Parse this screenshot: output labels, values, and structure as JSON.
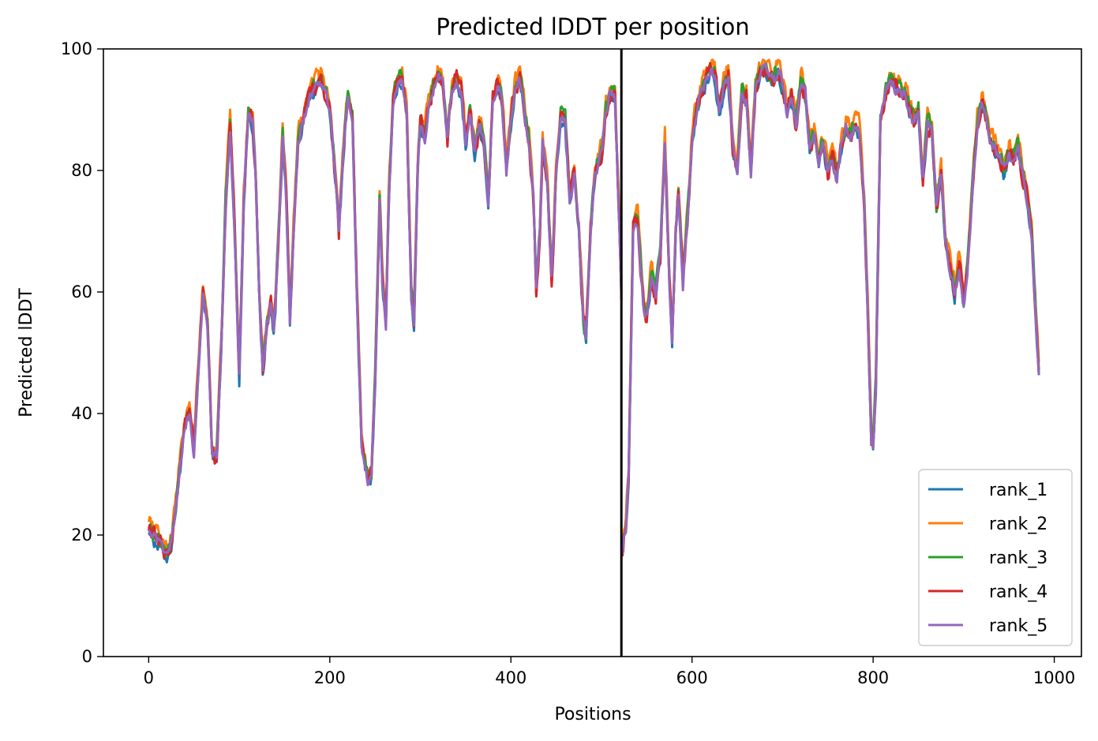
{
  "chart_data": {
    "type": "line",
    "title": "Predicted lDDT per position",
    "xlabel": "Positions",
    "ylabel": "Predicted lDDT",
    "xlim": [
      -50,
      1030
    ],
    "ylim": [
      0,
      100
    ],
    "xticks": [
      0,
      200,
      400,
      600,
      800,
      1000
    ],
    "yticks": [
      0,
      20,
      40,
      60,
      80,
      100
    ],
    "grid": false,
    "legend_position": "bottom-right",
    "chain_break": 522,
    "colors": {
      "rank_1": "#1f77b4",
      "rank_2": "#ff7f0e",
      "rank_3": "#2ca02c",
      "rank_4": "#d62728",
      "rank_5": "#9467bd",
      "chain_break": "#000000"
    },
    "base_profile": [
      [
        0,
        22
      ],
      [
        5,
        20
      ],
      [
        10,
        19
      ],
      [
        20,
        17
      ],
      [
        25,
        19
      ],
      [
        30,
        25
      ],
      [
        35,
        32
      ],
      [
        40,
        38
      ],
      [
        45,
        40
      ],
      [
        50,
        34
      ],
      [
        55,
        48
      ],
      [
        60,
        60
      ],
      [
        65,
        55
      ],
      [
        70,
        34
      ],
      [
        75,
        33
      ],
      [
        80,
        50
      ],
      [
        85,
        75
      ],
      [
        90,
        88
      ],
      [
        95,
        70
      ],
      [
        100,
        46
      ],
      [
        105,
        75
      ],
      [
        110,
        90
      ],
      [
        115,
        88
      ],
      [
        118,
        80
      ],
      [
        122,
        60
      ],
      [
        126,
        47
      ],
      [
        130,
        54
      ],
      [
        135,
        58
      ],
      [
        138,
        54
      ],
      [
        140,
        58
      ],
      [
        145,
        75
      ],
      [
        148,
        86
      ],
      [
        152,
        75
      ],
      [
        156,
        55
      ],
      [
        160,
        70
      ],
      [
        165,
        85
      ],
      [
        170,
        88
      ],
      [
        175,
        91
      ],
      [
        180,
        93
      ],
      [
        185,
        94
      ],
      [
        190,
        95
      ],
      [
        195,
        93
      ],
      [
        200,
        90
      ],
      [
        203,
        85
      ],
      [
        207,
        78
      ],
      [
        210,
        70
      ],
      [
        213,
        78
      ],
      [
        217,
        88
      ],
      [
        220,
        92
      ],
      [
        225,
        89
      ],
      [
        230,
        60
      ],
      [
        235,
        35
      ],
      [
        240,
        31
      ],
      [
        243,
        29
      ],
      [
        246,
        30
      ],
      [
        250,
        45
      ],
      [
        255,
        75
      ],
      [
        258,
        62
      ],
      [
        262,
        55
      ],
      [
        265,
        75
      ],
      [
        270,
        92
      ],
      [
        275,
        95
      ],
      [
        280,
        95
      ],
      [
        285,
        90
      ],
      [
        290,
        60
      ],
      [
        293,
        55
      ],
      [
        297,
        80
      ],
      [
        300,
        88
      ],
      [
        305,
        86
      ],
      [
        310,
        92
      ],
      [
        315,
        94
      ],
      [
        320,
        96
      ],
      [
        325,
        94
      ],
      [
        330,
        85
      ],
      [
        335,
        94
      ],
      [
        340,
        95
      ],
      [
        345,
        93
      ],
      [
        350,
        85
      ],
      [
        355,
        90
      ],
      [
        360,
        83
      ],
      [
        365,
        88
      ],
      [
        370,
        85
      ],
      [
        375,
        75
      ],
      [
        380,
        92
      ],
      [
        385,
        94
      ],
      [
        390,
        92
      ],
      [
        395,
        80
      ],
      [
        400,
        88
      ],
      [
        405,
        94
      ],
      [
        410,
        95
      ],
      [
        415,
        90
      ],
      [
        420,
        85
      ],
      [
        425,
        75
      ],
      [
        428,
        60
      ],
      [
        432,
        70
      ],
      [
        435,
        85
      ],
      [
        440,
        78
      ],
      [
        445,
        62
      ],
      [
        450,
        80
      ],
      [
        455,
        89
      ],
      [
        460,
        88
      ],
      [
        465,
        75
      ],
      [
        470,
        80
      ],
      [
        475,
        70
      ],
      [
        480,
        55
      ],
      [
        483,
        53
      ],
      [
        488,
        70
      ],
      [
        493,
        80
      ],
      [
        500,
        83
      ],
      [
        505,
        90
      ],
      [
        510,
        93
      ],
      [
        515,
        92
      ],
      [
        520,
        70
      ],
      [
        522,
        60
      ],
      [
        523,
        18
      ],
      [
        527,
        22
      ],
      [
        530,
        30
      ],
      [
        535,
        70
      ],
      [
        540,
        72
      ],
      [
        543,
        65
      ],
      [
        547,
        57
      ],
      [
        550,
        56
      ],
      [
        555,
        63
      ],
      [
        560,
        60
      ],
      [
        565,
        66
      ],
      [
        570,
        85
      ],
      [
        575,
        62
      ],
      [
        578,
        52
      ],
      [
        582,
        70
      ],
      [
        585,
        77
      ],
      [
        590,
        62
      ],
      [
        595,
        72
      ],
      [
        600,
        85
      ],
      [
        605,
        90
      ],
      [
        610,
        93
      ],
      [
        615,
        95
      ],
      [
        620,
        97
      ],
      [
        625,
        96
      ],
      [
        630,
        90
      ],
      [
        635,
        94
      ],
      [
        640,
        96
      ],
      [
        645,
        84
      ],
      [
        650,
        80
      ],
      [
        655,
        93
      ],
      [
        660,
        92
      ],
      [
        665,
        80
      ],
      [
        670,
        94
      ],
      [
        675,
        96
      ],
      [
        680,
        97
      ],
      [
        685,
        96
      ],
      [
        690,
        95
      ],
      [
        695,
        97
      ],
      [
        700,
        94
      ],
      [
        705,
        90
      ],
      [
        710,
        92
      ],
      [
        715,
        88
      ],
      [
        720,
        95
      ],
      [
        725,
        93
      ],
      [
        730,
        84
      ],
      [
        735,
        86
      ],
      [
        740,
        82
      ],
      [
        745,
        85
      ],
      [
        750,
        80
      ],
      [
        755,
        82
      ],
      [
        760,
        79
      ],
      [
        765,
        84
      ],
      [
        770,
        87
      ],
      [
        775,
        86
      ],
      [
        780,
        88
      ],
      [
        785,
        86
      ],
      [
        790,
        75
      ],
      [
        795,
        52
      ],
      [
        798,
        36
      ],
      [
        800,
        35
      ],
      [
        803,
        45
      ],
      [
        808,
        88
      ],
      [
        815,
        94
      ],
      [
        820,
        95
      ],
      [
        825,
        94
      ],
      [
        830,
        93
      ],
      [
        835,
        93
      ],
      [
        840,
        90
      ],
      [
        845,
        88
      ],
      [
        850,
        90
      ],
      [
        855,
        79
      ],
      [
        860,
        88
      ],
      [
        865,
        87
      ],
      [
        870,
        74
      ],
      [
        875,
        80
      ],
      [
        880,
        68
      ],
      [
        885,
        64
      ],
      [
        890,
        60
      ],
      [
        895,
        65
      ],
      [
        900,
        58
      ],
      [
        905,
        66
      ],
      [
        910,
        78
      ],
      [
        915,
        88
      ],
      [
        920,
        92
      ],
      [
        925,
        89
      ],
      [
        930,
        85
      ],
      [
        935,
        84
      ],
      [
        940,
        82
      ],
      [
        945,
        80
      ],
      [
        950,
        83
      ],
      [
        955,
        82
      ],
      [
        960,
        84
      ],
      [
        965,
        80
      ],
      [
        970,
        76
      ],
      [
        975,
        70
      ],
      [
        980,
        55
      ],
      [
        983,
        48
      ]
    ],
    "series": [
      {
        "name": "rank_1"
      },
      {
        "name": "rank_2"
      },
      {
        "name": "rank_3"
      },
      {
        "name": "rank_4"
      },
      {
        "name": "rank_5"
      }
    ]
  }
}
